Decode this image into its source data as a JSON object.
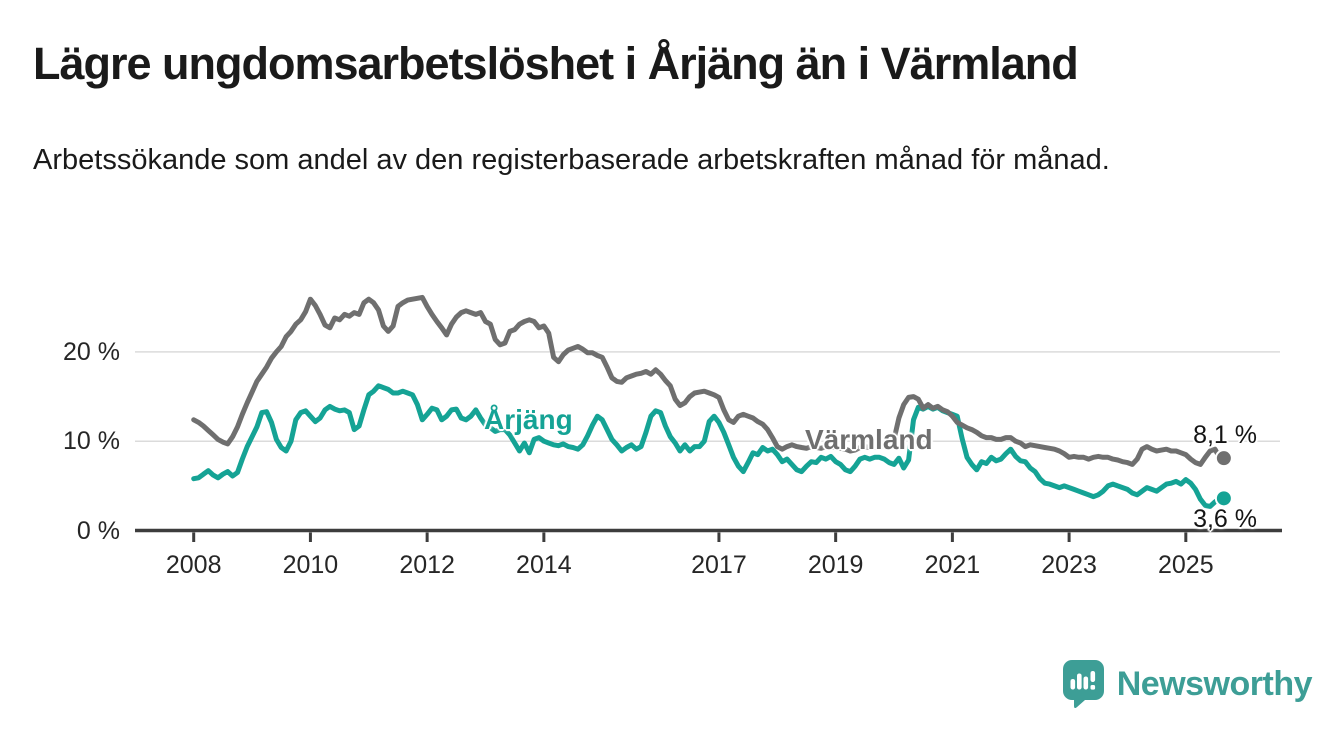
{
  "header": {
    "title": "Lägre ungdomsarbetslöshet i Årjäng än i Värmland",
    "subtitle": "Arbetssökande som andel av den registerbaserade arbetskraften månad för månad."
  },
  "chart_data": {
    "type": "line",
    "unit": "%",
    "frequency": "monthly",
    "x_start_year": 2008,
    "x_end_label_period": "2025 (August)",
    "x_tick_years": [
      2008,
      2010,
      2012,
      2014,
      2017,
      2019,
      2021,
      2023,
      2025
    ],
    "x_tick_labels": [
      "2008",
      "2010",
      "2012",
      "2014",
      "2017",
      "2019",
      "2021",
      "2023",
      "2025"
    ],
    "y_ticks": [
      0,
      10,
      20
    ],
    "y_tick_labels": [
      "0 %",
      "10 %",
      "20 %"
    ],
    "ylim": [
      0,
      27.5
    ],
    "grid": "horizontal",
    "legend_position": "inline-labels",
    "series": [
      {
        "name": "Årjäng",
        "color": "#15a395",
        "values": [
          5.8,
          5.9,
          6.3,
          6.7,
          6.2,
          5.9,
          6.3,
          6.6,
          6.1,
          6.5,
          8.0,
          9.4,
          10.5,
          11.6,
          13.2,
          13.3,
          12.1,
          10.2,
          9.3,
          8.9,
          10.0,
          12.4,
          13.2,
          13.4,
          12.8,
          12.2,
          12.6,
          13.5,
          13.9,
          13.6,
          13.4,
          13.5,
          13.2,
          11.3,
          11.7,
          13.5,
          15.2,
          15.6,
          16.2,
          16.0,
          15.8,
          15.4,
          15.4,
          15.6,
          15.4,
          15.2,
          14.1,
          12.4,
          13.0,
          13.7,
          13.5,
          12.4,
          12.8,
          13.5,
          13.6,
          12.6,
          12.4,
          12.8,
          13.5,
          12.6,
          11.8,
          11.5,
          11.1,
          11.3,
          11.3,
          10.7,
          9.8,
          8.9,
          9.8,
          8.7,
          10.2,
          10.4,
          10.0,
          9.8,
          9.6,
          9.5,
          9.7,
          9.4,
          9.3,
          9.1,
          9.6,
          10.6,
          11.8,
          12.8,
          12.4,
          11.3,
          10.2,
          9.6,
          8.9,
          9.3,
          9.6,
          9.1,
          9.4,
          11.0,
          12.8,
          13.4,
          13.2,
          11.7,
          10.5,
          9.8,
          8.9,
          9.6,
          8.9,
          9.4,
          9.4,
          10.0,
          12.2,
          12.8,
          12.1,
          11.0,
          9.6,
          8.2,
          7.2,
          6.6,
          7.6,
          8.7,
          8.5,
          9.3,
          8.9,
          9.1,
          8.5,
          7.7,
          8.0,
          7.4,
          6.8,
          6.6,
          7.2,
          7.7,
          7.6,
          8.2,
          8.0,
          8.3,
          7.7,
          7.4,
          6.8,
          6.6,
          7.2,
          8.0,
          8.2,
          8.0,
          8.2,
          8.2,
          8.0,
          7.6,
          7.4,
          8.1,
          7.0,
          7.9,
          12.4,
          13.8,
          13.6,
          13.9,
          13.6,
          13.8,
          13.4,
          13.2,
          13.0,
          12.8,
          10.3,
          8.2,
          7.4,
          6.8,
          7.7,
          7.5,
          8.2,
          7.8,
          8.0,
          8.6,
          9.1,
          8.3,
          7.8,
          7.7,
          7.0,
          6.6,
          5.8,
          5.3,
          5.2,
          5.0,
          4.8,
          5.0,
          4.8,
          4.6,
          4.4,
          4.2,
          4.0,
          3.8,
          4.0,
          4.4,
          5.0,
          5.2,
          5.0,
          4.8,
          4.6,
          4.2,
          4.0,
          4.4,
          4.8,
          4.6,
          4.4,
          4.8,
          5.2,
          5.3,
          5.5,
          5.2,
          5.7,
          5.3,
          4.6,
          3.5,
          2.8,
          2.7,
          3.2,
          3.6
        ]
      },
      {
        "name": "Värmland",
        "color": "#6f6f6f",
        "values": [
          12.4,
          12.1,
          11.7,
          11.2,
          10.7,
          10.2,
          9.9,
          9.7,
          10.5,
          11.6,
          13.0,
          14.3,
          15.5,
          16.7,
          17.5,
          18.3,
          19.3,
          20.0,
          20.6,
          21.7,
          22.3,
          23.1,
          23.6,
          24.5,
          25.9,
          25.2,
          24.2,
          23.0,
          22.7,
          23.8,
          23.6,
          24.2,
          24.0,
          24.4,
          24.2,
          25.5,
          25.9,
          25.5,
          24.7,
          22.9,
          22.3,
          22.9,
          25.1,
          25.5,
          25.8,
          25.9,
          26.0,
          26.1,
          25.1,
          24.2,
          23.4,
          22.7,
          21.9,
          23.1,
          23.9,
          24.4,
          24.6,
          24.4,
          24.2,
          24.4,
          23.4,
          23.1,
          21.4,
          20.8,
          21.0,
          22.3,
          22.5,
          23.1,
          23.4,
          23.6,
          23.4,
          22.7,
          22.9,
          22.1,
          19.4,
          18.9,
          19.7,
          20.2,
          20.4,
          20.6,
          20.3,
          19.9,
          19.9,
          19.6,
          19.4,
          18.3,
          17.1,
          16.7,
          16.6,
          17.1,
          17.3,
          17.5,
          17.6,
          17.8,
          17.5,
          18.0,
          17.5,
          16.8,
          16.2,
          14.7,
          14.0,
          14.3,
          15.0,
          15.4,
          15.5,
          15.6,
          15.4,
          15.2,
          14.9,
          13.5,
          12.4,
          12.1,
          12.8,
          13.0,
          12.8,
          12.6,
          12.2,
          11.9,
          11.3,
          10.4,
          9.4,
          9.1,
          9.4,
          9.6,
          9.4,
          9.3,
          9.2,
          9.4,
          9.3,
          9.2,
          9.4,
          9.3,
          9.3,
          9.2,
          9.1,
          8.9,
          9.0,
          9.3,
          9.4,
          9.3,
          9.4,
          9.4,
          9.5,
          9.6,
          10.2,
          12.6,
          14.1,
          14.9,
          15.0,
          14.7,
          13.7,
          14.1,
          13.7,
          13.9,
          13.5,
          13.3,
          12.8,
          12.1,
          11.8,
          11.5,
          11.3,
          11.0,
          10.6,
          10.4,
          10.4,
          10.2,
          10.2,
          10.4,
          10.4,
          10.0,
          9.8,
          9.4,
          9.6,
          9.5,
          9.4,
          9.3,
          9.2,
          9.1,
          8.9,
          8.6,
          8.2,
          8.3,
          8.2,
          8.2,
          8.0,
          8.2,
          8.3,
          8.2,
          8.2,
          8.0,
          7.9,
          7.7,
          7.6,
          7.4,
          8.0,
          9.1,
          9.4,
          9.1,
          8.9,
          9.0,
          9.1,
          8.9,
          8.9,
          8.7,
          8.5,
          8.0,
          7.6,
          7.4,
          8.2,
          8.9,
          9.1,
          8.1
        ]
      }
    ],
    "end_labels": {
      "arjang": "3,6 %",
      "varmland": "8,1 %"
    },
    "end_values": {
      "arjang": 3.6,
      "varmland": 8.1
    }
  },
  "colors": {
    "arjang_line": "#15a395",
    "varmland_line": "#6f6f6f",
    "text": "#1a1a1a",
    "grid": "#dbdbdb",
    "axis": "#3d3d3d",
    "background": "#ffffff",
    "brand": "#3d9e96"
  },
  "footer": {
    "brand": "Newsworthy",
    "logo_icon": "bar-chart-speech-bubble-icon"
  }
}
